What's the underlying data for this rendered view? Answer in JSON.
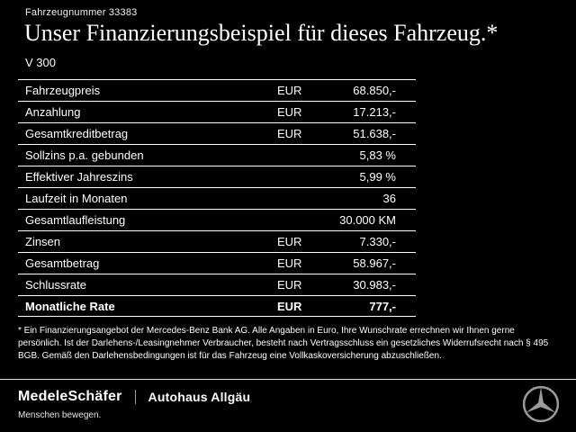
{
  "header": {
    "vehicle_number": "Fahrzeugnummer 33383",
    "title": "Unser Finanzierungsbeispiel für dieses Fahrzeug.*",
    "model": "V 300"
  },
  "table": {
    "rows": [
      {
        "label": "Fahrzeugpreis",
        "currency": "EUR",
        "value": "68.850,-",
        "bold": false
      },
      {
        "label": "Anzahlung",
        "currency": "EUR",
        "value": "17.213,-",
        "bold": false
      },
      {
        "label": "Gesamtkreditbetrag",
        "currency": "EUR",
        "value": "51.638,-",
        "bold": false
      },
      {
        "label": "Sollzins p.a. gebunden",
        "currency": "",
        "value": "5,83 %",
        "bold": false
      },
      {
        "label": "Effektiver Jahreszins",
        "currency": "",
        "value": "5,99 %",
        "bold": false
      },
      {
        "label": "Laufzeit in Monaten",
        "currency": "",
        "value": "36",
        "bold": false
      },
      {
        "label": "Gesamtlaufleistung",
        "currency": "",
        "value": "30.000 KM",
        "bold": false
      },
      {
        "label": "Zinsen",
        "currency": "EUR",
        "value": "7.330,-",
        "bold": false
      },
      {
        "label": "Gesamtbetrag",
        "currency": "EUR",
        "value": "58.967,-",
        "bold": false
      },
      {
        "label": "Schlussrate",
        "currency": "EUR",
        "value": "30.983,-",
        "bold": false
      },
      {
        "label": "Monatliche Rate",
        "currency": "EUR",
        "value": "777,-",
        "bold": true
      }
    ]
  },
  "footnote": "* Ein Finanzierungsangebot der Mercedes-Benz Bank AG. Alle Angaben in Euro, Ihre Wunschrate errechnen wir Ihnen gerne persönlich. Ist der Darlehens-/Leasingnehmer Verbraucher, besteht nach Vertragsschluss ein gesetzliches Widerrufsrecht nach § 495 BGB. Gemäß den Darlehensbedingungen ist für das Fahrzeug eine Vollkaskoversicherung abzuschließen.",
  "footer": {
    "dealer_primary": "MedeleSchäfer",
    "dealer_secondary": "Autohaus Allgäu",
    "tagline": "Menschen bewegen.",
    "brand_icon": "mercedes-star-icon"
  },
  "colors": {
    "background": "#000000",
    "text": "#ffffff",
    "table_line": "#ffffff",
    "star": "#9b9b9b"
  }
}
